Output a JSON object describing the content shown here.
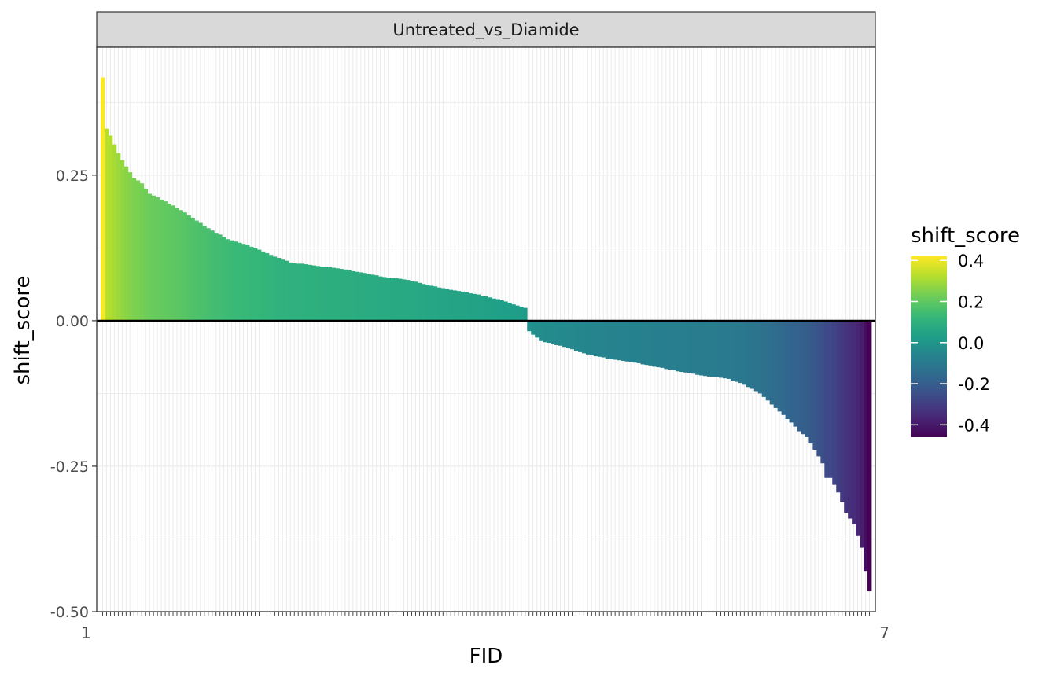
{
  "chart_data": {
    "type": "bar",
    "facet_label": "Untreated_vs_Diamide",
    "xlabel": "FID",
    "ylabel": "shift_score",
    "ylim": [
      -0.5,
      0.47
    ],
    "y_ticks": [
      {
        "value": 0.25,
        "label": "0.25"
      },
      {
        "value": 0.0,
        "label": "0.00"
      },
      {
        "value": -0.25,
        "label": "-0.25"
      },
      {
        "value": -0.5,
        "label": "-0.50"
      }
    ],
    "grid": true,
    "reference_line": 0,
    "x_tick_labels_start": "1",
    "x_tick_labels_end": "7",
    "n_bars": 197,
    "bar_order": "descending",
    "legend": {
      "title": "shift_score",
      "position": "right",
      "range": [
        -0.46,
        0.42
      ],
      "breaks": [
        {
          "value": 0.4,
          "label": "0.4"
        },
        {
          "value": 0.2,
          "label": "0.2"
        },
        {
          "value": 0.0,
          "label": "0.0"
        },
        {
          "value": -0.2,
          "label": "-0.2"
        },
        {
          "value": -0.4,
          "label": "-0.4"
        }
      ],
      "colormap": "viridis"
    },
    "profile_anchors": [
      [
        0,
        0.418
      ],
      [
        1,
        0.33
      ],
      [
        2,
        0.318
      ],
      [
        4,
        0.288
      ],
      [
        6,
        0.265
      ],
      [
        8,
        0.245
      ],
      [
        10,
        0.236
      ],
      [
        12,
        0.218
      ],
      [
        16,
        0.205
      ],
      [
        20,
        0.19
      ],
      [
        24,
        0.172
      ],
      [
        28,
        0.155
      ],
      [
        32,
        0.14
      ],
      [
        36,
        0.132
      ],
      [
        40,
        0.122
      ],
      [
        44,
        0.11
      ],
      [
        48,
        0.1
      ],
      [
        54,
        0.095
      ],
      [
        60,
        0.09
      ],
      [
        66,
        0.083
      ],
      [
        72,
        0.075
      ],
      [
        78,
        0.07
      ],
      [
        84,
        0.06
      ],
      [
        90,
        0.052
      ],
      [
        96,
        0.045
      ],
      [
        102,
        0.035
      ],
      [
        106,
        0.026
      ],
      [
        108,
        0.022
      ],
      [
        109,
        -0.018
      ],
      [
        112,
        -0.035
      ],
      [
        118,
        -0.045
      ],
      [
        124,
        -0.058
      ],
      [
        130,
        -0.066
      ],
      [
        136,
        -0.072
      ],
      [
        142,
        -0.08
      ],
      [
        148,
        -0.088
      ],
      [
        154,
        -0.095
      ],
      [
        160,
        -0.1
      ],
      [
        164,
        -0.11
      ],
      [
        168,
        -0.125
      ],
      [
        172,
        -0.15
      ],
      [
        176,
        -0.175
      ],
      [
        178,
        -0.19
      ],
      [
        180,
        -0.2
      ],
      [
        182,
        -0.222
      ],
      [
        184,
        -0.245
      ],
      [
        185,
        -0.27
      ],
      [
        186,
        -0.27
      ],
      [
        188,
        -0.295
      ],
      [
        190,
        -0.33
      ],
      [
        192,
        -0.35
      ],
      [
        194,
        -0.39
      ],
      [
        195,
        -0.43
      ],
      [
        196,
        -0.465
      ]
    ]
  }
}
